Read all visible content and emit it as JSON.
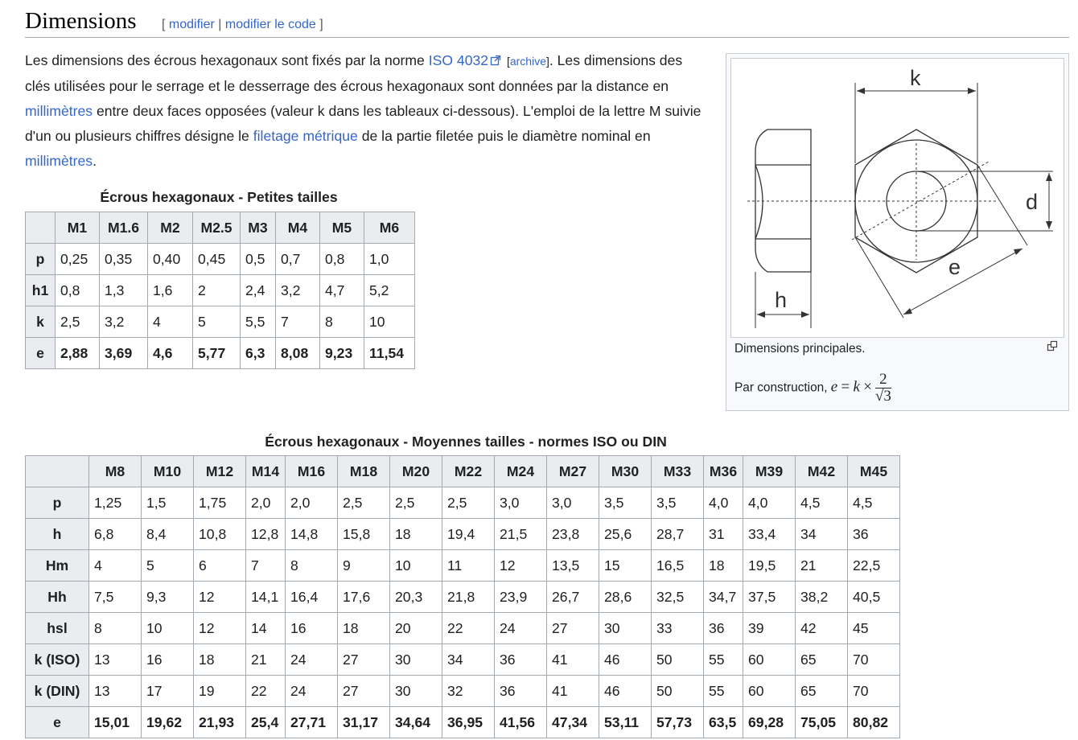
{
  "section": {
    "title": "Dimensions",
    "edit_bracket_open": "[",
    "edit_link": "modifier",
    "edit_sep": "|",
    "edit_code_link": "modifier le code",
    "edit_bracket_close": "]"
  },
  "intro": {
    "t1": "Les dimensions des écrous hexagonaux sont fixés par la norme ",
    "link_iso": "ISO 4032",
    "archive_open": "[",
    "archive_link": "archive",
    "archive_close": "]",
    "t2": ". Les dimensions des clés utilisées pour le serrage et le desserrage des écrous hexagonaux sont données par la distance en ",
    "link_mm1": "millimètres",
    "t3": " entre deux faces opposées (valeur k dans les tableaux ci-dessous). L'emploi de la lettre M suivie d'un ou plusieurs chiffres désigne le ",
    "link_filetage": "filetage métrique",
    "t4": " de la partie filetée puis le diamètre nominal en ",
    "link_mm2": "millimètres",
    "t5": "."
  },
  "figure": {
    "label_k": "k",
    "label_d": "d",
    "label_e": "e",
    "label_h": "h",
    "caption": "Dimensions principales.",
    "construction_prefix": "Par construction, ",
    "formula_e": "e",
    "formula_eq": "=",
    "formula_k": "k",
    "formula_times": "×",
    "formula_num": "2",
    "formula_den": "√3"
  },
  "table_small": {
    "caption": "Écrous hexagonaux - Petites tailles",
    "columns": [
      "M1",
      "M1.6",
      "M2",
      "M2.5",
      "M3",
      "M4",
      "M5",
      "M6"
    ],
    "rows": [
      {
        "label": "p",
        "values": [
          "0,25",
          "0,35",
          "0,40",
          "0,45",
          "0,5",
          "0,7",
          "0,8",
          "1,0"
        ]
      },
      {
        "label": "h1",
        "values": [
          "0,8",
          "1,3",
          "1,6",
          "2",
          "2,4",
          "3,2",
          "4,7",
          "5,2"
        ]
      },
      {
        "label": "k",
        "values": [
          "2,5",
          "3,2",
          "4",
          "5",
          "5,5",
          "7",
          "8",
          "10"
        ]
      },
      {
        "label": "e",
        "values": [
          "2,88",
          "3,69",
          "4,6",
          "5,77",
          "6,3",
          "8,08",
          "9,23",
          "11,54"
        ]
      }
    ]
  },
  "table_medium": {
    "caption": "Écrous hexagonaux - Moyennes tailles - normes ISO ou DIN",
    "columns": [
      "M8",
      "M10",
      "M12",
      "M14",
      "M16",
      "M18",
      "M20",
      "M22",
      "M24",
      "M27",
      "M30",
      "M33",
      "M36",
      "M39",
      "M42",
      "M45"
    ],
    "rows": [
      {
        "label": "p",
        "values": [
          "1,25",
          "1,5",
          "1,75",
          "2,0",
          "2,0",
          "2,5",
          "2,5",
          "2,5",
          "3,0",
          "3,0",
          "3,5",
          "3,5",
          "4,0",
          "4,0",
          "4,5",
          "4,5"
        ]
      },
      {
        "label": "h",
        "values": [
          "6,8",
          "8,4",
          "10,8",
          "12,8",
          "14,8",
          "15,8",
          "18",
          "19,4",
          "21,5",
          "23,8",
          "25,6",
          "28,7",
          "31",
          "33,4",
          "34",
          "36"
        ]
      },
      {
        "label": "Hm",
        "values": [
          "4",
          "5",
          "6",
          "7",
          "8",
          "9",
          "10",
          "11",
          "12",
          "13,5",
          "15",
          "16,5",
          "18",
          "19,5",
          "21",
          "22,5"
        ]
      },
      {
        "label": "Hh",
        "values": [
          "7,5",
          "9,3",
          "12",
          "14,1",
          "16,4",
          "17,6",
          "20,3",
          "21,8",
          "23,9",
          "26,7",
          "28,6",
          "32,5",
          "34,7",
          "37,5",
          "38,2",
          "40,5"
        ]
      },
      {
        "label": "hsl",
        "values": [
          "8",
          "10",
          "12",
          "14",
          "16",
          "18",
          "20",
          "22",
          "24",
          "27",
          "30",
          "33",
          "36",
          "39",
          "42",
          "45"
        ]
      },
      {
        "label": "k (ISO)",
        "values": [
          "13",
          "16",
          "18",
          "21",
          "24",
          "27",
          "30",
          "34",
          "36",
          "41",
          "46",
          "50",
          "55",
          "60",
          "65",
          "70"
        ]
      },
      {
        "label": "k (DIN)",
        "values": [
          "13",
          "17",
          "19",
          "22",
          "24",
          "27",
          "30",
          "32",
          "36",
          "41",
          "46",
          "50",
          "55",
          "60",
          "65",
          "70"
        ]
      },
      {
        "label": "e",
        "values": [
          "15,01",
          "19,62",
          "21,93",
          "25,4",
          "27,71",
          "31,17",
          "34,64",
          "36,95",
          "41,56",
          "47,34",
          "53,11",
          "57,73",
          "63,5",
          "69,28",
          "75,05",
          "80,82"
        ]
      }
    ]
  },
  "icons": {
    "external_link": "external-link-icon",
    "enlarge": "enlarge-icon"
  },
  "colors": {
    "link": "#3366cc",
    "header_bg": "#eaecf0",
    "border": "#a2a9b1"
  }
}
